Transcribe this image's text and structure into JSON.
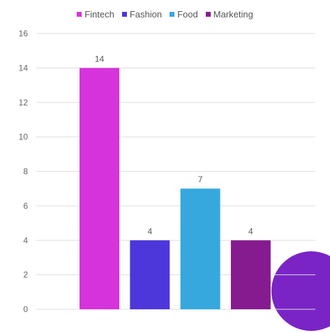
{
  "chart_data": {
    "type": "bar",
    "categories": [
      "Fintech",
      "Fashion",
      "Food",
      "Marketing"
    ],
    "values": [
      14,
      4,
      7,
      4
    ],
    "data_labels": [
      "14",
      "4",
      "7",
      "4"
    ],
    "colors": [
      "#d633dc",
      "#4d37db",
      "#36a8de",
      "#851b8e"
    ],
    "title": "",
    "xlabel": "",
    "ylabel": "",
    "ylim": [
      0,
      16
    ],
    "yticks": [
      "0",
      "2",
      "4",
      "6",
      "8",
      "10",
      "12",
      "14",
      "16"
    ],
    "grid": true,
    "legend": "top-center",
    "legend_entries": [
      "Fintech",
      "Fashion",
      "Food",
      "Marketing"
    ]
  },
  "decoration": {
    "circle_color": "#7a24c6"
  }
}
